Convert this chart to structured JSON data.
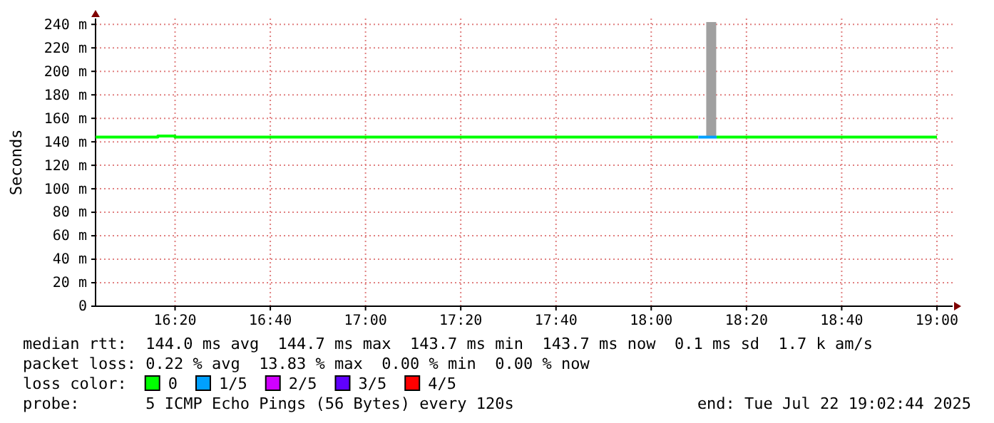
{
  "chart_data": {
    "type": "line",
    "ylabel": "Seconds",
    "legend_title": "loss color:",
    "legend": "bottom",
    "grid": true,
    "xlim": [
      16.055,
      19.055
    ],
    "xticks": [
      {
        "value": 16.3333,
        "label": "16:20"
      },
      {
        "value": 16.6667,
        "label": "16:40"
      },
      {
        "value": 17,
        "label": "17:00"
      },
      {
        "value": 17.3333,
        "label": "17:20"
      },
      {
        "value": 17.6667,
        "label": "17:40"
      },
      {
        "value": 18,
        "label": "18:00"
      },
      {
        "value": 18.3333,
        "label": "18:20"
      },
      {
        "value": 18.6667,
        "label": "18:40"
      },
      {
        "value": 19,
        "label": "19:00"
      }
    ],
    "ylim": [
      0,
      245
    ],
    "yticks": [
      0,
      {
        "value": 20,
        "label": "20 m"
      },
      {
        "value": 40,
        "label": "40 m"
      },
      {
        "value": 60,
        "label": "60 m"
      },
      {
        "value": 80,
        "label": "80 m"
      },
      {
        "value": 100,
        "label": "100 m"
      },
      {
        "value": 120,
        "label": "120 m"
      },
      {
        "value": 140,
        "label": "140 m"
      },
      {
        "value": 160,
        "label": "160 m"
      },
      {
        "value": 180,
        "label": "180 m"
      },
      {
        "value": 200,
        "label": "200 m"
      },
      {
        "value": 220,
        "label": "220 m"
      },
      {
        "value": 240,
        "label": "240 m"
      }
    ],
    "series": [
      {
        "type": "bar",
        "color": "#a0a0a0",
        "x": [
          18.21
        ],
        "base": [
          144
        ],
        "values": [
          98
        ]
      },
      {
        "name": "0",
        "color": "#00ff00",
        "x": [
          16.055,
          16.273,
          16.273,
          16.333,
          16.333,
          18.165,
          18.2,
          18.229,
          19.0
        ],
        "values": [
          144,
          144,
          145,
          145,
          144,
          144,
          null,
          144,
          144
        ]
      },
      {
        "name": "1/5",
        "color": "#00a0ff",
        "x": [
          18.165,
          18.229
        ],
        "values": [
          144,
          144
        ]
      },
      {
        "name": "2/5",
        "color": "#d000ff"
      },
      {
        "name": "3/5",
        "color": "#6000ff"
      },
      {
        "name": "4/5",
        "color": "#ff0000"
      }
    ],
    "annotations": [
      "median rtt:  144.0 ms avg  144.7 ms max  143.7 ms min  143.7 ms now  0.1 ms sd  1.7 k am/s",
      "packet loss: 0.22 % avg  13.83 % max  0.00 % min  0.00 % now",
      "probe:       5 ICMP Echo Pings (56 Bytes) every 120s",
      "end: Tue Jul 22 19:02:44 2025"
    ]
  }
}
